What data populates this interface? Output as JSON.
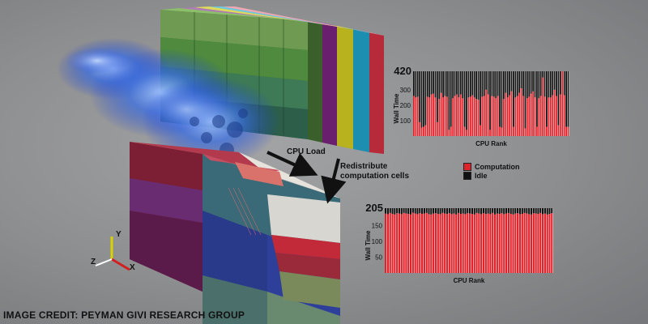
{
  "annotations": {
    "cpu_load": "CPU Load",
    "redistribute": "Redistribute computation cells",
    "credit": "IMAGE CREDIT: PEYMAN GIVI RESEARCH GROUP"
  },
  "legend": [
    {
      "label": "Computation",
      "color": "#e0232b"
    },
    {
      "label": "Idle",
      "color": "#111111"
    }
  ],
  "axes_gizmo": {
    "x": "X",
    "y": "Y",
    "z": "Z"
  },
  "chart_data": [
    {
      "type": "bar",
      "xlabel": "CPU Rank",
      "ylabel": "Wall Time",
      "max_label": "420",
      "ylim": [
        0,
        420
      ],
      "yticks": [
        100,
        200,
        300
      ],
      "series": [
        {
          "name": "Computation",
          "values": [
            260,
            250,
            255,
            90,
            55,
            60,
            70,
            255,
            250,
            270,
            275,
            250,
            90,
            240,
            280,
            250,
            260,
            255,
            40,
            60,
            245,
            260,
            270,
            250,
            270,
            245,
            60,
            40,
            250,
            255,
            265,
            250,
            240,
            235,
            70,
            255,
            260,
            300,
            270,
            40,
            260,
            255,
            245,
            260,
            60,
            55,
            240,
            280,
            250,
            265,
            290,
            60,
            250,
            260,
            280,
            310,
            260,
            50,
            245,
            255,
            275,
            290,
            250,
            60,
            245,
            260,
            380,
            255,
            60,
            250,
            250,
            265,
            300,
            260,
            70,
            270,
            420,
            265,
            60,
            60
          ]
        },
        {
          "name": "Idle",
          "values": [
            160,
            170,
            165,
            330,
            365,
            360,
            350,
            165,
            170,
            150,
            145,
            170,
            330,
            180,
            140,
            170,
            160,
            165,
            380,
            360,
            175,
            160,
            150,
            170,
            150,
            175,
            360,
            380,
            170,
            165,
            155,
            170,
            180,
            185,
            350,
            165,
            160,
            120,
            150,
            380,
            160,
            165,
            175,
            160,
            360,
            365,
            180,
            140,
            170,
            155,
            130,
            360,
            170,
            160,
            140,
            110,
            160,
            370,
            175,
            165,
            145,
            130,
            170,
            360,
            175,
            160,
            40,
            165,
            360,
            170,
            170,
            155,
            120,
            160,
            350,
            150,
            0,
            155,
            360,
            360
          ]
        }
      ]
    },
    {
      "type": "bar",
      "xlabel": "CPU Rank",
      "ylabel": "Wall Time",
      "max_label": "205",
      "ylim": [
        0,
        205
      ],
      "yticks": [
        50,
        100,
        150
      ],
      "series": [
        {
          "name": "Computation",
          "values": [
            188,
            186,
            190,
            187,
            185,
            189,
            188,
            186,
            190,
            188,
            187,
            185,
            191,
            188,
            186,
            189,
            187,
            188,
            190,
            186,
            185,
            188,
            189,
            187,
            186,
            190,
            188,
            187,
            189,
            186,
            188,
            185,
            190,
            187,
            188,
            186,
            189,
            188,
            187,
            185,
            190,
            188,
            186,
            189,
            187,
            188,
            186,
            190,
            185,
            188,
            187,
            189,
            186,
            188,
            190,
            187,
            185,
            188,
            189,
            186,
            187,
            190,
            188,
            186,
            185,
            189,
            188,
            187,
            190,
            186,
            188,
            185,
            187,
            189
          ]
        },
        {
          "name": "Idle",
          "values": [
            17,
            19,
            15,
            18,
            20,
            16,
            17,
            19,
            15,
            17,
            18,
            20,
            14,
            17,
            19,
            16,
            18,
            17,
            15,
            19,
            20,
            17,
            16,
            18,
            19,
            15,
            17,
            18,
            16,
            19,
            17,
            20,
            15,
            18,
            17,
            19,
            16,
            17,
            18,
            20,
            15,
            17,
            19,
            16,
            18,
            17,
            19,
            15,
            20,
            17,
            18,
            16,
            19,
            17,
            15,
            18,
            20,
            17,
            16,
            19,
            18,
            15,
            17,
            19,
            20,
            16,
            17,
            18,
            15,
            19,
            17,
            20,
            18,
            16
          ]
        }
      ]
    }
  ]
}
